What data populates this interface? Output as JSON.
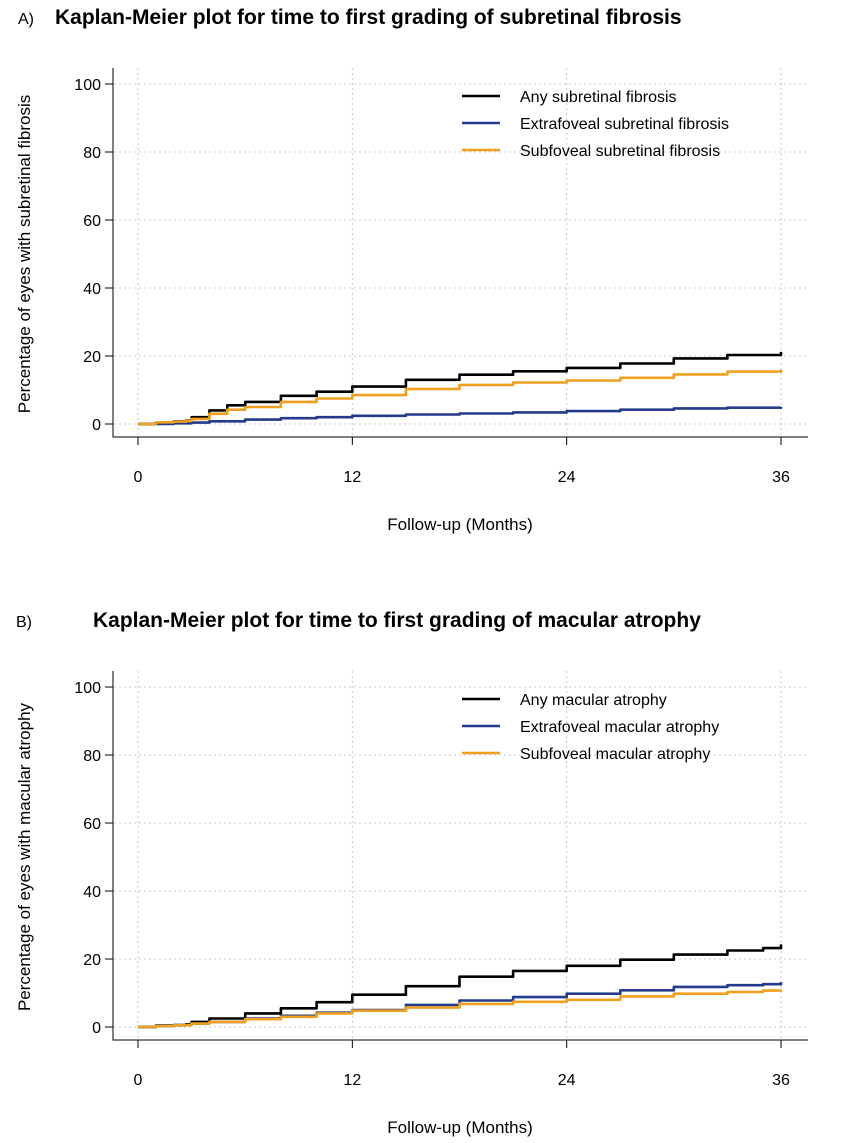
{
  "chart_data": [
    {
      "type": "line",
      "panel_label": "A)",
      "title": "Kaplan-Meier plot for time to first grading of subretinal fibrosis",
      "xlabel": "Follow-up (Months)",
      "ylabel": "Percentage of eyes with subretinal fibrosis",
      "xlim": [
        0,
        36
      ],
      "ylim": [
        0,
        100
      ],
      "xticks": [
        0,
        12,
        24,
        36
      ],
      "yticks": [
        0,
        20,
        40,
        60,
        80,
        100
      ],
      "grid": true,
      "legend_position": "top-right",
      "series": [
        {
          "name": "Any subretinal fibrosis",
          "color": "#000000",
          "x": [
            0,
            1,
            2,
            2.7,
            3,
            4,
            5,
            6,
            8,
            10,
            12,
            15,
            18,
            21,
            24,
            27,
            30,
            33,
            36
          ],
          "values": [
            0,
            0.5,
            0.8,
            1,
            2,
            4,
            5.5,
            6.5,
            8.3,
            9.5,
            11,
            13,
            14.5,
            15.5,
            16.5,
            17.8,
            19.3,
            20.3,
            21.2
          ]
        },
        {
          "name": "Extrafoveal subretinal fibrosis",
          "color": "#243a8a",
          "x": [
            0,
            2,
            3,
            4,
            6,
            8,
            10,
            12,
            15,
            18,
            21,
            24,
            27,
            30,
            33,
            36
          ],
          "values": [
            0,
            0.2,
            0.4,
            0.8,
            1.3,
            1.7,
            2,
            2.4,
            2.8,
            3.1,
            3.4,
            3.8,
            4.2,
            4.6,
            4.8,
            5
          ]
        },
        {
          "name": "Subfoveal subretinal fibrosis",
          "color": "#f0a020",
          "x": [
            0,
            1,
            2,
            2.7,
            3,
            4,
            5,
            6,
            8,
            10,
            12,
            15,
            18,
            21,
            24,
            27,
            30,
            33,
            36
          ],
          "values": [
            0,
            0.5,
            0.7,
            0.9,
            1.5,
            3,
            4.2,
            5,
            6.5,
            7.5,
            8.5,
            10.3,
            11.5,
            12.2,
            12.8,
            13.6,
            14.6,
            15.4,
            16
          ]
        }
      ]
    },
    {
      "type": "line",
      "panel_label": "B)",
      "title": "Kaplan-Meier plot for time to first grading of macular atrophy",
      "xlabel": "Follow-up (Months)",
      "ylabel": "Percentage of eyes with macular atrophy",
      "xlim": [
        0,
        36
      ],
      "ylim": [
        0,
        100
      ],
      "xticks": [
        0,
        12,
        24,
        36
      ],
      "yticks": [
        0,
        20,
        40,
        60,
        80,
        100
      ],
      "grid": true,
      "legend_position": "top-right",
      "series": [
        {
          "name": "Any macular atrophy",
          "color": "#000000",
          "x": [
            0,
            1,
            2,
            2.7,
            3,
            4,
            6,
            8,
            10,
            12,
            15,
            18,
            21,
            24,
            27,
            30,
            33,
            35,
            36
          ],
          "values": [
            0,
            0.4,
            0.6,
            0.8,
            1.5,
            2.5,
            4,
            5.5,
            7.3,
            9.5,
            12,
            14.8,
            16.5,
            18,
            19.8,
            21.3,
            22.5,
            23.2,
            24.3
          ]
        },
        {
          "name": "Extrafoveal macular atrophy",
          "color": "#243a8a",
          "x": [
            0,
            1,
            2,
            2.7,
            3,
            4,
            6,
            8,
            10,
            12,
            15,
            18,
            21,
            24,
            27,
            30,
            33,
            35,
            36
          ],
          "values": [
            0,
            0.3,
            0.5,
            0.6,
            1,
            1.5,
            2.5,
            3.3,
            4.2,
            5,
            6.5,
            7.8,
            8.8,
            9.8,
            10.8,
            11.8,
            12.3,
            12.6,
            13.2
          ]
        },
        {
          "name": "Subfoveal macular atrophy",
          "color": "#f0a020",
          "x": [
            0,
            1,
            2,
            2.7,
            3,
            4,
            6,
            8,
            10,
            12,
            15,
            18,
            21,
            24,
            27,
            30,
            33,
            35,
            36
          ],
          "values": [
            0,
            0.3,
            0.5,
            0.6,
            1,
            1.5,
            2.3,
            3,
            4,
            4.8,
            5.7,
            6.8,
            7.4,
            8,
            9,
            9.8,
            10.3,
            10.7,
            11
          ]
        }
      ]
    }
  ]
}
